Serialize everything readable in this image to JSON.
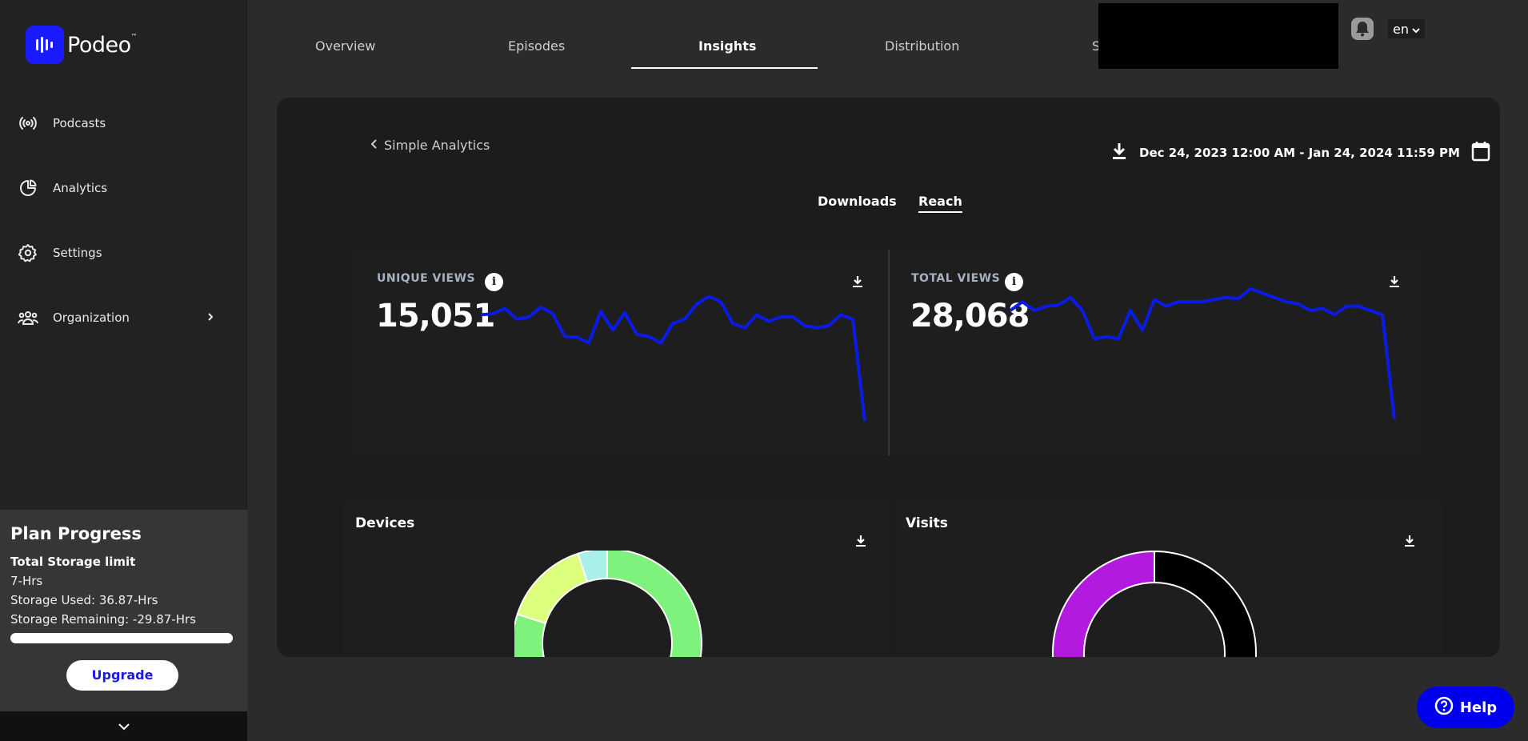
{
  "brand": {
    "name": "Podeo",
    "tm": "™"
  },
  "sidebar": {
    "items": [
      {
        "label": "Podcasts",
        "icon": "broadcast-icon"
      },
      {
        "label": "Analytics",
        "icon": "pie-chart-icon"
      },
      {
        "label": "Settings",
        "icon": "gear-icon"
      },
      {
        "label": "Organization",
        "icon": "users-icon"
      }
    ],
    "plan": {
      "title": "Plan Progress",
      "storage_limit_label": "Total Storage limit",
      "limit": "7-Hrs",
      "used": "Storage Used: 36.87-Hrs",
      "remaining": "Storage Remaining: -29.87-Hrs",
      "progress": 1.0,
      "upgrade_label": "Upgrade"
    }
  },
  "tabs": [
    {
      "label": "Overview",
      "active": false
    },
    {
      "label": "Episodes",
      "active": false
    },
    {
      "label": "Insights",
      "active": true
    },
    {
      "label": "Distribution",
      "active": false
    },
    {
      "label": "S",
      "active": false
    }
  ],
  "header": {
    "language": "en"
  },
  "insights": {
    "back_label": "Simple Analytics",
    "date_range": "Dec 24, 2023 12:00 AM - Jan 24, 2024 11:59 PM",
    "subtabs": [
      {
        "label": "Downloads",
        "active": false
      },
      {
        "label": "Reach",
        "active": true
      }
    ],
    "unique_views": {
      "label": "UNIQUE VIEWS",
      "value": "15,051"
    },
    "total_views": {
      "label": "TOTAL VIEWS",
      "value": "28,068"
    },
    "devices": {
      "title": "Devices"
    },
    "visits": {
      "title": "Visits"
    }
  },
  "chart_data": [
    {
      "type": "line",
      "title": "UNIQUE VIEWS",
      "values": [
        540,
        545,
        570,
        520,
        530,
        575,
        545,
        440,
        438,
        410,
        555,
        470,
        550,
        450,
        440,
        410,
        500,
        520,
        590,
        625,
        600,
        500,
        480,
        540,
        510,
        530,
        530,
        490,
        480,
        490,
        540,
        520,
        50
      ],
      "color": "#0a1be6",
      "grid": false
    },
    {
      "type": "line",
      "title": "TOTAL VIEWS",
      "values": [
        560,
        600,
        560,
        580,
        585,
        620,
        560,
        430,
        440,
        430,
        560,
        470,
        610,
        580,
        600,
        600,
        600,
        610,
        620,
        615,
        660,
        640,
        620,
        600,
        590,
        560,
        570,
        540,
        580,
        580,
        560,
        540,
        60
      ],
      "color": "#0a1be6",
      "grid": false
    },
    {
      "type": "pie",
      "title": "Devices",
      "slices": [
        {
          "value": 0.47,
          "color": "#7ef27c"
        },
        {
          "value": 0.33,
          "color": "#7ef27c"
        },
        {
          "value": 0.15,
          "color": "#dcff7d"
        },
        {
          "value": 0.05,
          "color": "#a8f0e8"
        }
      ]
    },
    {
      "type": "pie",
      "title": "Visits",
      "slices": [
        {
          "value": 0.5,
          "color": "#000000"
        },
        {
          "value": 0.5,
          "color": "#b31ae0"
        }
      ]
    }
  ],
  "help": {
    "label": "Help"
  },
  "colors": {
    "accent": "#0000ee",
    "sidebar_bg": "#222222",
    "page_bg": "#2b2b2b",
    "panel_bg": "#1c1c1c"
  }
}
